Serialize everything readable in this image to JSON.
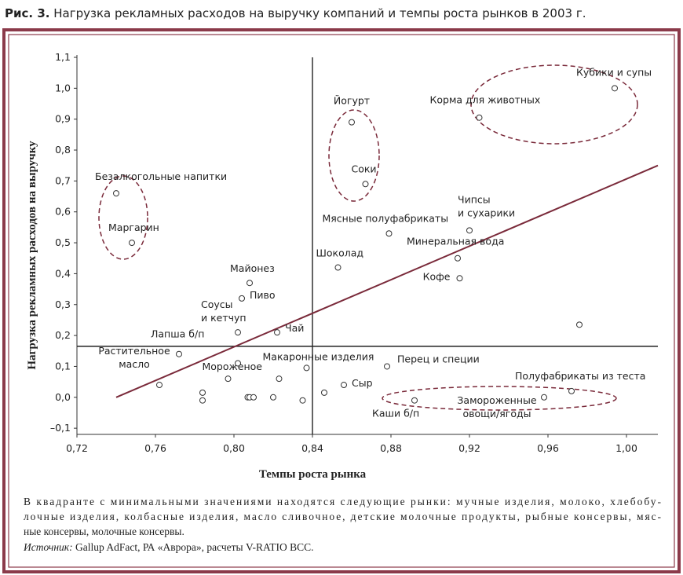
{
  "chart_data": {
    "type": "scatter",
    "figure_label": "Рис. 3.",
    "title": "Нагрузка рекламных расходов на выручку компаний и темпы роста рынков в 2003 г.",
    "xlabel": "Темпы роста рынка",
    "ylabel": "Нагрузка рекламных расходов на выручку",
    "color": "#333333",
    "line_color": "#7a2a3a",
    "xlim": [
      0.72,
      1.016
    ],
    "ylim": [
      -0.12,
      1.1
    ],
    "xticks": [
      {
        "value": 0.72,
        "label": "0,72"
      },
      {
        "value": 0.76,
        "label": "0,76"
      },
      {
        "value": 0.8,
        "label": "0,80"
      },
      {
        "value": 0.84,
        "label": "0,84"
      },
      {
        "value": 0.88,
        "label": "0,88"
      },
      {
        "value": 0.92,
        "label": "0,92"
      },
      {
        "value": 0.96,
        "label": "0,96"
      },
      {
        "value": 1.0,
        "label": "1,00"
      }
    ],
    "yticks": [
      {
        "value": -0.1,
        "label": "–0,1"
      },
      {
        "value": 0,
        "label": "0,0"
      },
      {
        "value": 0.1,
        "label": "0,1"
      },
      {
        "value": 0.2,
        "label": "0,2"
      },
      {
        "value": 0.3,
        "label": "0,3"
      },
      {
        "value": 0.4,
        "label": "0,4"
      },
      {
        "value": 0.5,
        "label": "0,5"
      },
      {
        "value": 0.6,
        "label": "0,6"
      },
      {
        "value": 0.7,
        "label": "0,7"
      },
      {
        "value": 0.8,
        "label": "0,8"
      },
      {
        "value": 0.9,
        "label": "0,9"
      },
      {
        "value": 1.0,
        "label": "1,0"
      },
      {
        "value": 1.1,
        "label": "1,1"
      }
    ],
    "x": [
      0.74,
      0.748,
      0.86,
      0.867,
      0.994,
      0.925,
      0.879,
      0.92,
      0.914,
      0.915,
      0.853,
      0.808,
      0.804,
      0.802,
      0.822,
      0.772,
      0.762,
      0.797,
      0.837,
      0.878,
      0.856,
      0.892,
      0.958,
      0.972,
      0.976,
      0.784,
      0.784,
      0.802,
      0.807,
      0.808,
      0.81,
      0.82,
      0.823,
      0.835,
      0.846
    ],
    "values": [
      0.66,
      0.5,
      0.89,
      0.69,
      1.0,
      0.905,
      0.53,
      0.54,
      0.45,
      0.385,
      0.42,
      0.37,
      0.32,
      0.21,
      0.21,
      0.14,
      0.04,
      0.06,
      0.095,
      0.1,
      0.04,
      -0.01,
      0.0,
      0.02,
      0.235,
      0.015,
      -0.01,
      0.11,
      0.0,
      0.0,
      0.0,
      0.0,
      0.06,
      -0.01,
      0.015
    ],
    "labels": [
      [
        "Безалкогольные напитки"
      ],
      [
        "Маргарин"
      ],
      [
        "Йогурт"
      ],
      [
        "Соки"
      ],
      [
        "Кубики и супы"
      ],
      [
        "Корма для животных"
      ],
      [
        "Мясные полуфабрикаты"
      ],
      [
        "Чипсы",
        "и сухарики"
      ],
      [
        "Минеральная вода"
      ],
      [
        "Кофе"
      ],
      [
        "Шоколад"
      ],
      [
        "Майонез"
      ],
      [
        "Пиво"
      ],
      [
        "Соусы",
        "и кетчуп"
      ],
      [
        "Чай"
      ],
      [
        "Лапша б/п"
      ],
      [
        "Растительное",
        "масло"
      ],
      [
        "Мороженое"
      ],
      [
        "Макаронные изделия"
      ],
      [
        "Перец и специи"
      ],
      [
        "Сыр"
      ],
      [
        "Каши б/п"
      ],
      [
        "Замороженные",
        "овощи/ягоды"
      ],
      [
        "Полуфабрикаты из теста"
      ],
      null,
      null,
      null,
      null,
      null,
      null,
      null,
      null,
      null,
      null,
      null
    ],
    "quadrant": {
      "x": 0.84,
      "y": 0.165
    },
    "trend_line": {
      "x": [
        0.74,
        1.016
      ],
      "y": [
        0,
        0.75
      ]
    }
  },
  "note": {
    "lines": [
      "В квадранте с минимальными значениями находятся следующие рынки: мучные изделия, молоко, хлебобу-",
      "лочные изделия, колбасные изделия, масло сливочное, детские молочные продукты, рыбные консервы, мяс-",
      "ные консервы, молочные консервы."
    ],
    "source_label": "Источник:",
    "source_text": " Gallup AdFact, РА «Аврора», расчеты V-RATIO BCC."
  }
}
